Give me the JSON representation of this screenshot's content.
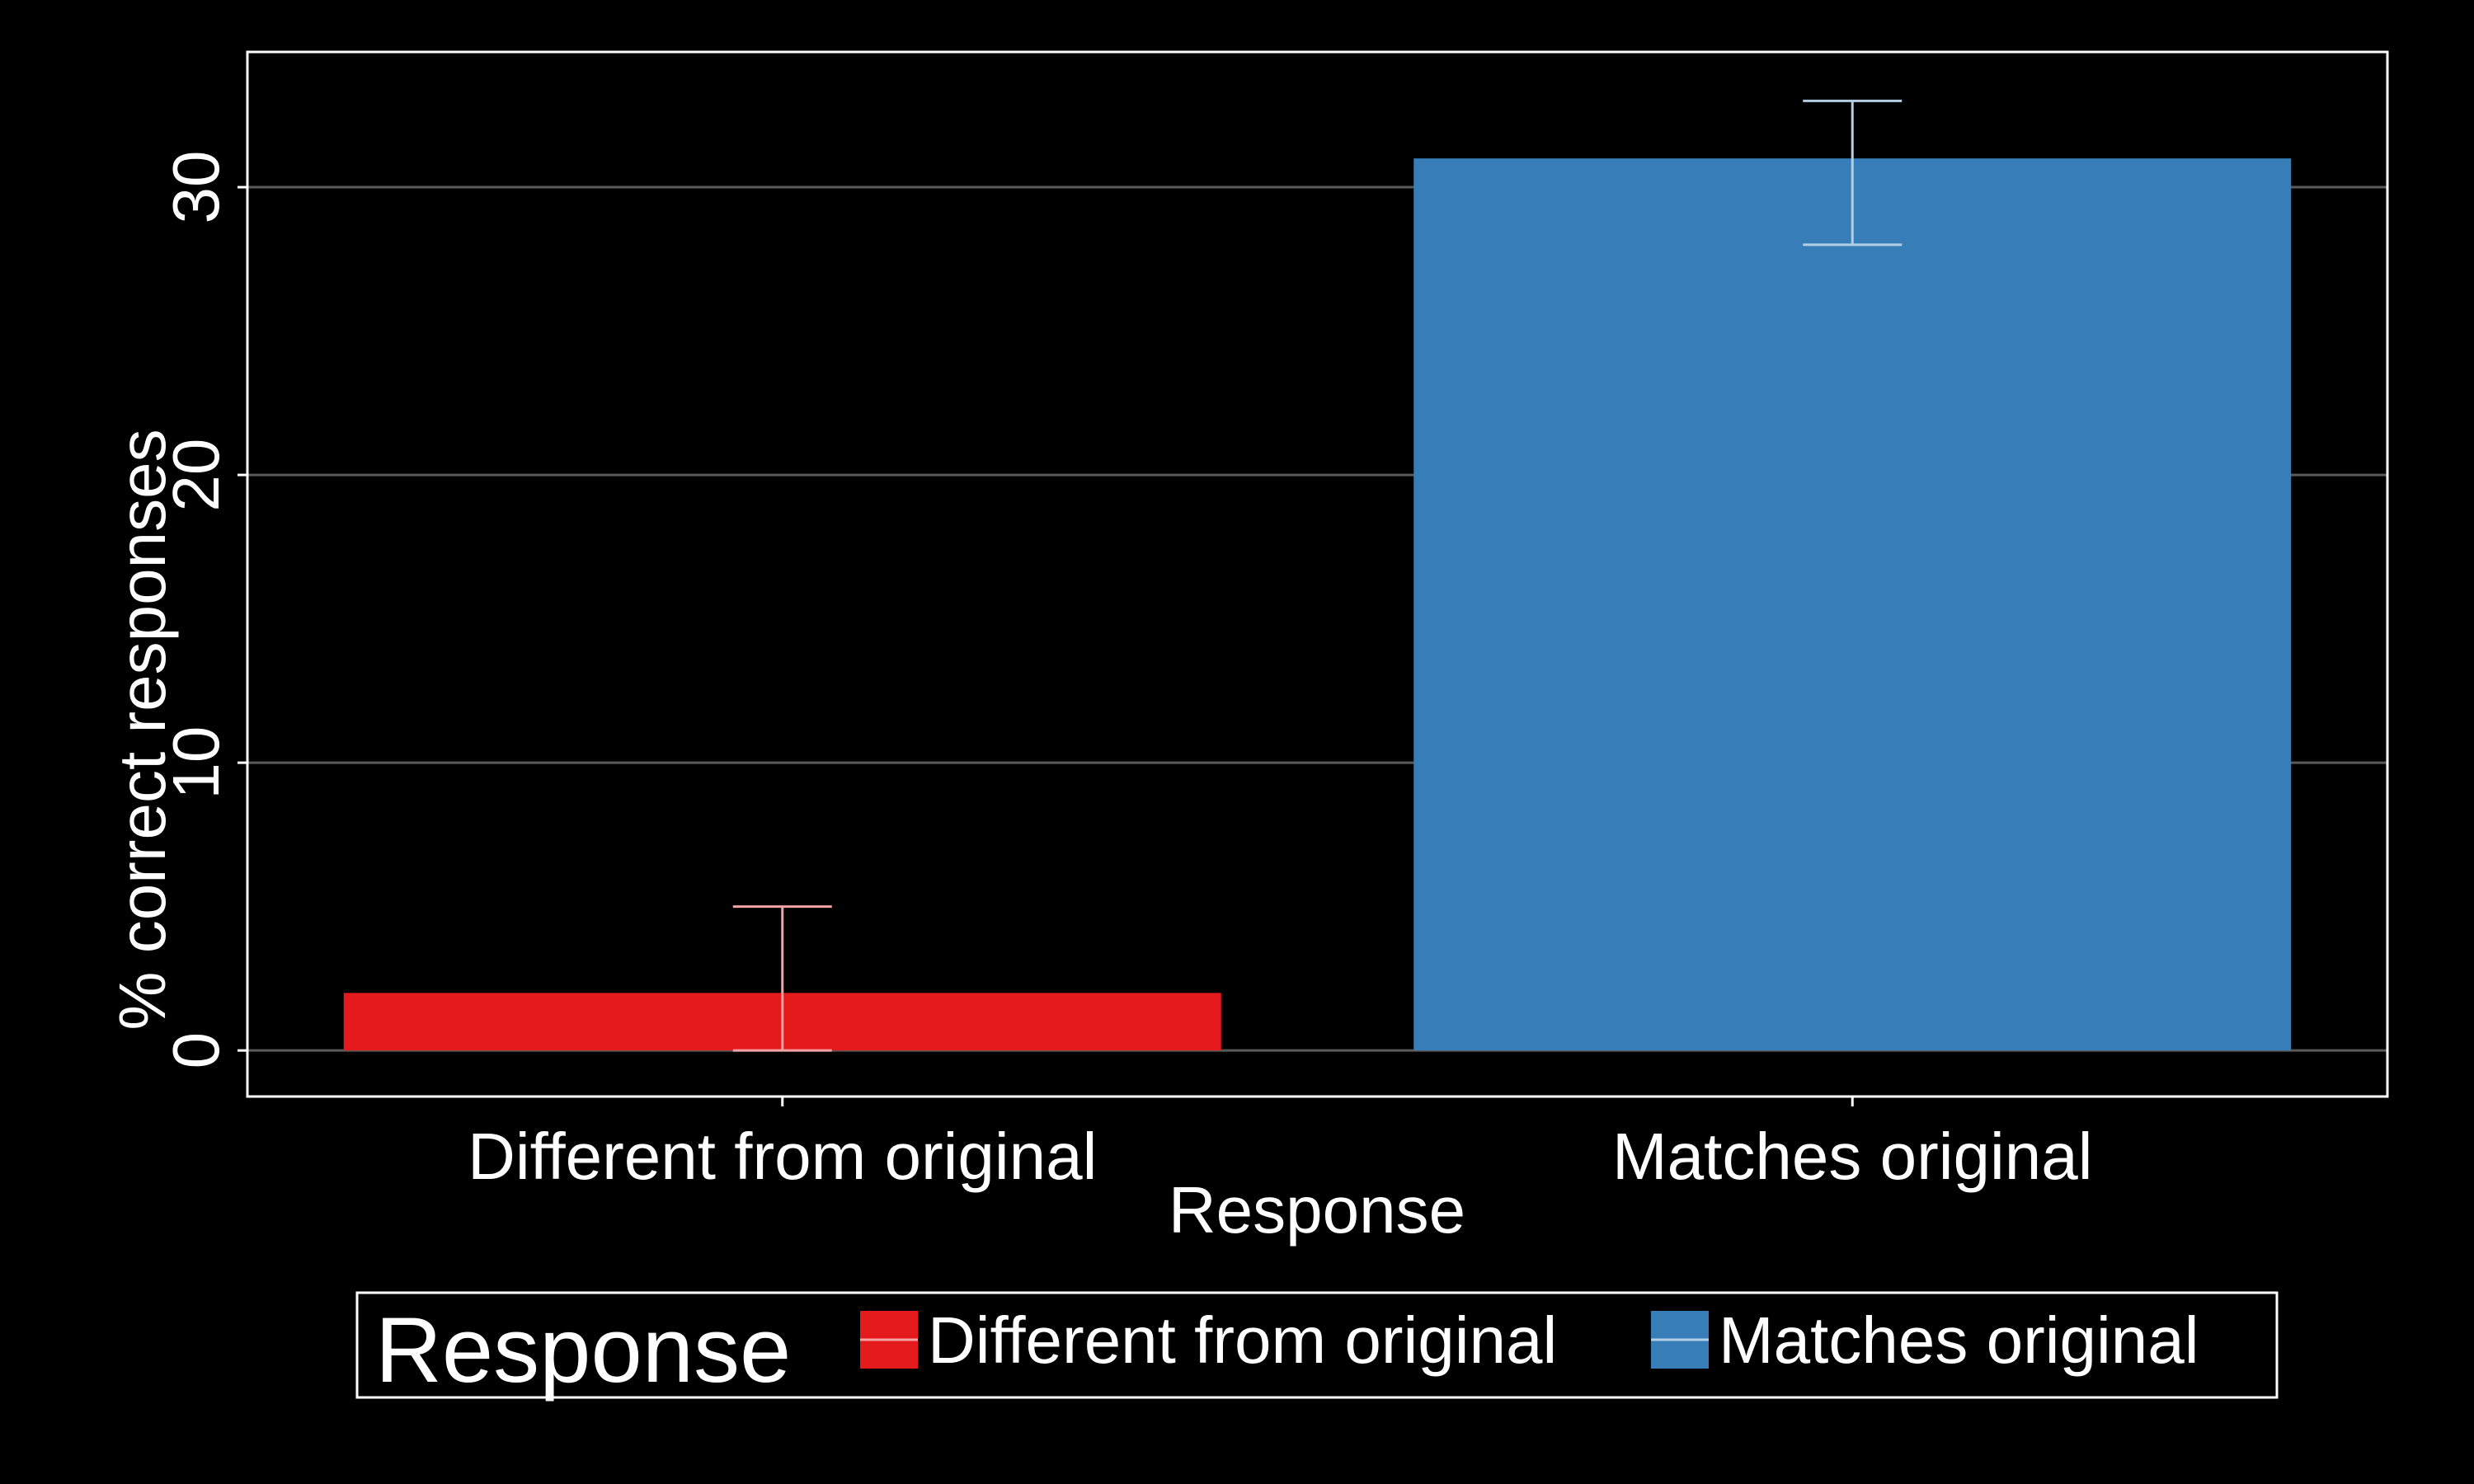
{
  "chart_data": {
    "type": "bar",
    "categories": [
      "Different from original",
      "Matches original"
    ],
    "values": [
      2,
      31
    ],
    "error_bars": [
      {
        "low": 0,
        "high": 5
      },
      {
        "low": 28,
        "high": 33
      }
    ],
    "colors": [
      "#E41A1C",
      "#377EB8"
    ],
    "error_bar_colors": [
      "#F4A3A4",
      "#B3CDE3"
    ],
    "xlabel": "Response",
    "ylabel": "% correct responses",
    "ylim": [
      -1.6,
      34.7
    ],
    "yticks": [
      "0",
      "10",
      "20",
      "30"
    ],
    "ytick_values": [
      0,
      10,
      20,
      30
    ],
    "grid": "horizontal",
    "legend": {
      "position": "bottom",
      "title": "Response",
      "entries": [
        "Different from original",
        "Matches original"
      ]
    },
    "background": "#000000",
    "foreground": "#FFFFFF",
    "gridline_color": "#5A5A5A"
  }
}
